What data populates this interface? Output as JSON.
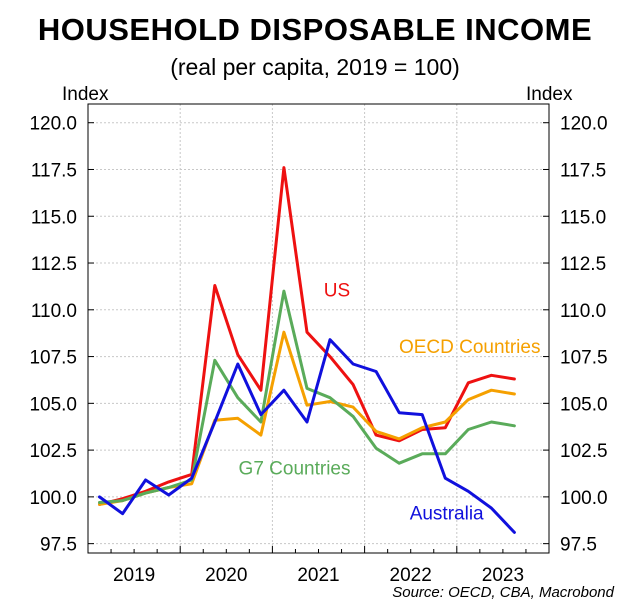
{
  "chart_data": {
    "type": "line",
    "title": "HOUSEHOLD DISPOSABLE INCOME",
    "subtitle": "(real per capita, 2019 = 100)",
    "ylabel_left": "Index",
    "ylabel_right": "Index",
    "ylim": [
      97.0,
      121.0
    ],
    "yticks": [
      97.5,
      100.0,
      102.5,
      105.0,
      107.5,
      110.0,
      112.5,
      115.0,
      117.5,
      120.0
    ],
    "ytick_labels": [
      "97.5",
      "100.0",
      "102.5",
      "105.0",
      "107.5",
      "110.0",
      "112.5",
      "115.0",
      "117.5",
      "120.0"
    ],
    "x_year_labels": [
      "2019",
      "2020",
      "2021",
      "2022",
      "2023"
    ],
    "x_year_start": 2018.5,
    "x_year_end": 2023.5,
    "grid": true,
    "series": [
      {
        "name": "US",
        "color": "#ee1111",
        "x": [
          2018.625,
          2018.875,
          2019.125,
          2019.375,
          2019.625,
          2019.875,
          2020.125,
          2020.375,
          2020.625,
          2020.875,
          2021.125,
          2021.375,
          2021.625,
          2021.875,
          2022.125,
          2022.375,
          2022.625,
          2022.875,
          2023.125
        ],
        "values": [
          99.6,
          99.9,
          100.3,
          100.8,
          101.2,
          111.3,
          107.6,
          105.7,
          117.6,
          108.8,
          107.5,
          106.0,
          103.3,
          103.0,
          103.6,
          103.7,
          106.1,
          106.5,
          106.3
        ]
      },
      {
        "name": "OECD Countries",
        "color": "#f5a000",
        "x": [
          2018.625,
          2018.875,
          2019.125,
          2019.375,
          2019.625,
          2019.875,
          2020.125,
          2020.375,
          2020.625,
          2020.875,
          2021.125,
          2021.375,
          2021.625,
          2021.875,
          2022.125,
          2022.375,
          2022.625,
          2022.875,
          2023.125
        ],
        "values": [
          99.6,
          99.8,
          100.2,
          100.5,
          100.7,
          104.1,
          104.2,
          103.3,
          108.8,
          104.9,
          105.1,
          104.8,
          103.5,
          103.1,
          103.7,
          104.0,
          105.2,
          105.7,
          105.5
        ]
      },
      {
        "name": "G7 Countries",
        "color": "#5aab5a",
        "x": [
          2018.625,
          2018.875,
          2019.125,
          2019.375,
          2019.625,
          2019.875,
          2020.125,
          2020.375,
          2020.625,
          2020.875,
          2021.125,
          2021.375,
          2021.625,
          2021.875,
          2022.125,
          2022.375,
          2022.625,
          2022.875,
          2023.125
        ],
        "values": [
          99.7,
          99.8,
          100.2,
          100.5,
          100.9,
          107.3,
          105.3,
          104.0,
          111.0,
          105.8,
          105.3,
          104.3,
          102.6,
          101.8,
          102.3,
          102.3,
          103.6,
          104.0,
          103.8
        ]
      },
      {
        "name": "Australia",
        "color": "#1010dd",
        "x": [
          2018.625,
          2018.875,
          2019.125,
          2019.375,
          2019.625,
          2019.875,
          2020.125,
          2020.375,
          2020.625,
          2020.875,
          2021.125,
          2021.375,
          2021.625,
          2021.875,
          2022.125,
          2022.375,
          2022.625,
          2022.875,
          2023.125
        ],
        "values": [
          100.0,
          99.1,
          100.9,
          100.1,
          101.0,
          104.0,
          107.1,
          104.4,
          105.7,
          104.0,
          108.4,
          107.1,
          106.7,
          104.5,
          104.4,
          101.0,
          100.3,
          99.4,
          98.1
        ]
      }
    ],
    "series_labels": [
      {
        "text": "US",
        "color": "#ee1111",
        "x": 2021.2,
        "y": 110.7
      },
      {
        "text": "OECD Countries",
        "color": "#f5a000",
        "x": 2022.64,
        "y": 107.7
      },
      {
        "text": "G7 Countries",
        "color": "#5aab5a",
        "x": 2020.74,
        "y": 101.2
      },
      {
        "text": "Australia",
        "color": "#1010dd",
        "x": 2022.39,
        "y": 98.8
      }
    ],
    "source": "Source: OECD, CBA, Macrobond"
  }
}
